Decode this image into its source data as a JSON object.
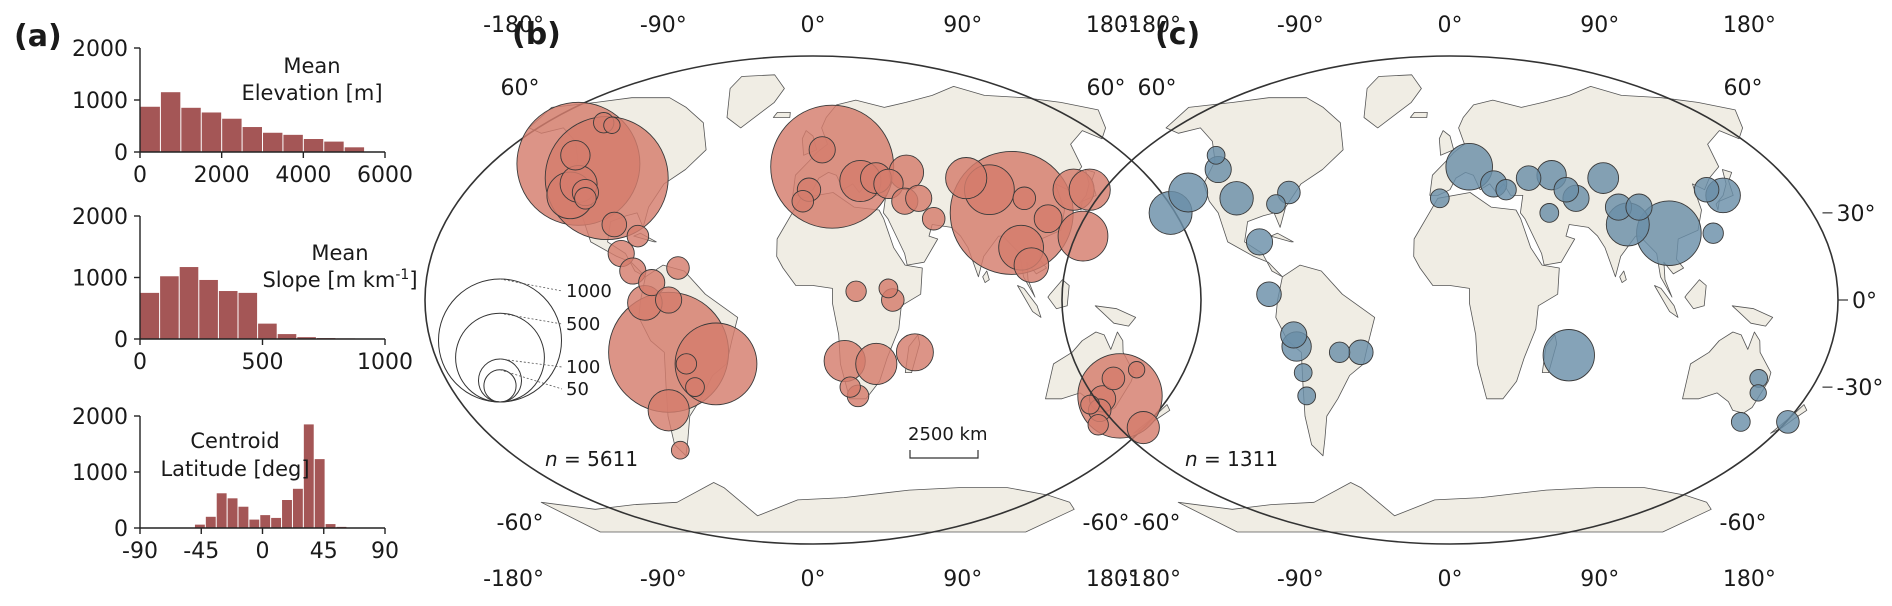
{
  "panels": {
    "a": "(a)",
    "b": "(b)",
    "c": "(c)"
  },
  "histograms": [
    {
      "title_line1": "Mean",
      "title_line2": "Elevation [m]",
      "x_ticks": [
        "0",
        "2000",
        "4000",
        "6000"
      ],
      "x_tick_values": [
        0,
        2000,
        4000,
        6000
      ],
      "y_ticks": [
        "2000",
        "1000",
        "0"
      ],
      "y_tick_values": [
        2000,
        1000,
        0
      ],
      "xlim": [
        0,
        6000
      ],
      "ylim": [
        0,
        2000
      ],
      "bin_edges": [
        0,
        500,
        1000,
        1500,
        2000,
        2500,
        3000,
        3500,
        4000,
        4500,
        5000,
        5500
      ],
      "counts": [
        870,
        1150,
        850,
        760,
        640,
        480,
        370,
        330,
        250,
        200,
        90
      ]
    },
    {
      "title_line1": "Mean",
      "title_line2": "Slope [m km",
      "title_sup": "-1",
      "title_close": "]",
      "x_ticks": [
        "0",
        "500",
        "1000"
      ],
      "x_tick_values": [
        0,
        500,
        1000
      ],
      "y_ticks": [
        "2000",
        "1000",
        "0"
      ],
      "y_tick_values": [
        2000,
        1000,
        0
      ],
      "xlim": [
        0,
        1000
      ],
      "ylim": [
        0,
        2000
      ],
      "bin_edges": [
        0,
        80,
        160,
        240,
        320,
        400,
        480,
        560,
        640,
        720,
        800,
        880
      ],
      "counts": [
        750,
        1020,
        1170,
        960,
        780,
        750,
        250,
        80,
        30,
        15,
        10
      ]
    },
    {
      "title_line1": "Centroid",
      "title_line2": "Latitude [deg]",
      "x_ticks": [
        "-90",
        "-45",
        "0",
        "45",
        "90"
      ],
      "x_tick_values": [
        -90,
        -45,
        0,
        45,
        90
      ],
      "y_ticks": [
        "2000",
        "1000",
        "0"
      ],
      "y_tick_values": [
        2000,
        1000,
        0
      ],
      "xlim": [
        -90,
        90
      ],
      "ylim": [
        0,
        2000
      ],
      "bin_edges": [
        -50,
        -42,
        -34,
        -26,
        -18,
        -10,
        -2,
        6,
        14,
        22,
        30,
        38,
        46,
        54,
        62
      ],
      "counts": [
        60,
        200,
        620,
        530,
        380,
        150,
        230,
        180,
        500,
        700,
        1850,
        1230,
        70,
        20
      ]
    }
  ],
  "maps": {
    "lon_ticks": [
      "-180°",
      "-90°",
      "0°",
      "90°",
      "180°"
    ],
    "lon_values": [
      -180,
      -90,
      0,
      90,
      180
    ],
    "lat_labels_top": [
      "60°",
      "60°"
    ],
    "lat_labels_bottom": [
      "-60°",
      "-60°"
    ],
    "b": {
      "n_prefix": "n",
      "n_value": " = 5611",
      "scale_bar": "2500 km",
      "legend_values": [
        "1000",
        "500",
        "100",
        "50"
      ],
      "legend_numbers": [
        1000,
        500,
        100,
        50
      ],
      "color": "#d47c6d",
      "points": [
        {
          "lon": -123,
          "lat": 47,
          "size": 1000
        },
        {
          "lon": -105,
          "lat": 42,
          "size": 1000
        },
        {
          "lon": -120,
          "lat": 36,
          "size": 120
        },
        {
          "lon": -118,
          "lat": 40,
          "size": 70
        },
        {
          "lon": -127,
          "lat": 50,
          "size": 40
        },
        {
          "lon": -124,
          "lat": 62,
          "size": 15
        },
        {
          "lon": -118,
          "lat": 61,
          "size": 8
        },
        {
          "lon": -113,
          "lat": 37,
          "size": 30
        },
        {
          "lon": -112,
          "lat": 35,
          "size": 18
        },
        {
          "lon": -95,
          "lat": 26,
          "size": 25
        },
        {
          "lon": -83,
          "lat": 22,
          "size": 18
        },
        {
          "lon": -90,
          "lat": 16,
          "size": 30
        },
        {
          "lon": -84,
          "lat": 10,
          "size": 30
        },
        {
          "lon": -75,
          "lat": 6,
          "size": 30
        },
        {
          "lon": -78,
          "lat": -1,
          "size": 60
        },
        {
          "lon": -63,
          "lat": 11,
          "size": 20
        },
        {
          "lon": -67,
          "lat": 0,
          "size": 30
        },
        {
          "lon": -68,
          "lat": -18,
          "size": 950
        },
        {
          "lon": -46,
          "lat": -22,
          "size": 420
        },
        {
          "lon": -60,
          "lat": -22,
          "size": 15
        },
        {
          "lon": -57,
          "lat": -30,
          "size": 12
        },
        {
          "lon": -72,
          "lat": -38,
          "size": 90
        },
        {
          "lon": -72,
          "lat": -52,
          "size": 10
        },
        {
          "lon": 10,
          "lat": 46,
          "size": 1000
        },
        {
          "lon": 5,
          "lat": 52,
          "size": 30
        },
        {
          "lon": -2,
          "lat": 38,
          "size": 22
        },
        {
          "lon": -5,
          "lat": 34,
          "size": 18
        },
        {
          "lon": 24,
          "lat": 41,
          "size": 90
        },
        {
          "lon": 32,
          "lat": 42,
          "size": 45
        },
        {
          "lon": 38,
          "lat": 40,
          "size": 40
        },
        {
          "lon": 48,
          "lat": 44,
          "size": 60
        },
        {
          "lon": 45,
          "lat": 34,
          "size": 30
        },
        {
          "lon": 52,
          "lat": 35,
          "size": 30
        },
        {
          "lon": 58,
          "lat": 28,
          "size": 20
        },
        {
          "lon": 78,
          "lat": 42,
          "size": 90
        },
        {
          "lon": 96,
          "lat": 30,
          "size": 1000
        },
        {
          "lon": 88,
          "lat": 38,
          "size": 140
        },
        {
          "lon": 104,
          "lat": 35,
          "size": 20
        },
        {
          "lon": 98,
          "lat": 18,
          "size": 110
        },
        {
          "lon": 102,
          "lat": 12,
          "size": 60
        },
        {
          "lon": 113,
          "lat": 28,
          "size": 35
        },
        {
          "lon": 130,
          "lat": 38,
          "size": 90
        },
        {
          "lon": 138,
          "lat": 38,
          "size": 90
        },
        {
          "lon": 128,
          "lat": 22,
          "size": 140
        },
        {
          "lon": 35,
          "lat": 4,
          "size": 12
        },
        {
          "lon": 37,
          "lat": 0,
          "size": 20
        },
        {
          "lon": 20,
          "lat": 3,
          "size": 15
        },
        {
          "lon": 15,
          "lat": -21,
          "size": 90
        },
        {
          "lon": 30,
          "lat": -22,
          "size": 90
        },
        {
          "lon": 48,
          "lat": -18,
          "size": 70
        },
        {
          "lon": 18,
          "lat": -30,
          "size": 15
        },
        {
          "lon": 22,
          "lat": -33,
          "size": 18
        },
        {
          "lon": 144,
          "lat": -27,
          "size": 20
        },
        {
          "lon": 150,
          "lat": -33,
          "size": 450
        },
        {
          "lon": 137,
          "lat": -36,
          "size": 12
        },
        {
          "lon": 143,
          "lat": -38,
          "size": 20
        },
        {
          "lon": 142,
          "lat": -34,
          "size": 30
        },
        {
          "lon": 146,
          "lat": -43,
          "size": 15
        },
        {
          "lon": 170,
          "lat": -44,
          "size": 50
        },
        {
          "lon": 154,
          "lat": -24,
          "size": 8
        }
      ]
    },
    "c": {
      "n_prefix": "n",
      "n_value": " = 1311",
      "color": "#6a8fa8",
      "points": [
        {
          "lon": -125,
          "lat": 50,
          "size": 10
        },
        {
          "lon": -120,
          "lat": 45,
          "size": 30
        },
        {
          "lon": -130,
          "lat": 37,
          "size": 80
        },
        {
          "lon": -135,
          "lat": 30,
          "size": 100
        },
        {
          "lon": -105,
          "lat": 35,
          "size": 55
        },
        {
          "lon": -85,
          "lat": 33,
          "size": 12
        },
        {
          "lon": -80,
          "lat": 37,
          "size": 20
        },
        {
          "lon": -90,
          "lat": 20,
          "size": 30
        },
        {
          "lon": -84,
          "lat": 2,
          "size": 25
        },
        {
          "lon": -73,
          "lat": -12,
          "size": 30
        },
        {
          "lon": -72,
          "lat": -16,
          "size": 40
        },
        {
          "lon": -52,
          "lat": -18,
          "size": 15
        },
        {
          "lon": -42,
          "lat": -18,
          "size": 25
        },
        {
          "lon": -70,
          "lat": -25,
          "size": 10
        },
        {
          "lon": -70,
          "lat": -33,
          "size": 10
        },
        {
          "lon": 10,
          "lat": 46,
          "size": 120
        },
        {
          "lon": -5,
          "lat": 35,
          "size": 12
        },
        {
          "lon": 22,
          "lat": 40,
          "size": 30
        },
        {
          "lon": 28,
          "lat": 38,
          "size": 15
        },
        {
          "lon": 40,
          "lat": 42,
          "size": 25
        },
        {
          "lon": 52,
          "lat": 43,
          "size": 40
        },
        {
          "lon": 58,
          "lat": 38,
          "size": 25
        },
        {
          "lon": 62,
          "lat": 35,
          "size": 30
        },
        {
          "lon": 48,
          "lat": 30,
          "size": 12
        },
        {
          "lon": 78,
          "lat": 42,
          "size": 45
        },
        {
          "lon": 82,
          "lat": 32,
          "size": 30
        },
        {
          "lon": 85,
          "lat": 26,
          "size": 100
        },
        {
          "lon": 92,
          "lat": 32,
          "size": 30
        },
        {
          "lon": 104,
          "lat": 23,
          "size": 250
        },
        {
          "lon": 135,
          "lat": 36,
          "size": 60
        },
        {
          "lon": 128,
          "lat": 38,
          "size": 25
        },
        {
          "lon": 125,
          "lat": 23,
          "size": 15
        },
        {
          "lon": 56,
          "lat": -19,
          "size": 150
        },
        {
          "lon": 148,
          "lat": -27,
          "size": 10
        },
        {
          "lon": 150,
          "lat": -32,
          "size": 8
        },
        {
          "lon": 148,
          "lat": -42,
          "size": 12
        },
        {
          "lon": 172,
          "lat": -42,
          "size": 20
        }
      ]
    },
    "right_lat_axis": {
      "labels": [
        "30°",
        "0°",
        "-30°"
      ],
      "values": [
        30,
        0,
        -30
      ]
    }
  },
  "land_color": "#f0ede4"
}
